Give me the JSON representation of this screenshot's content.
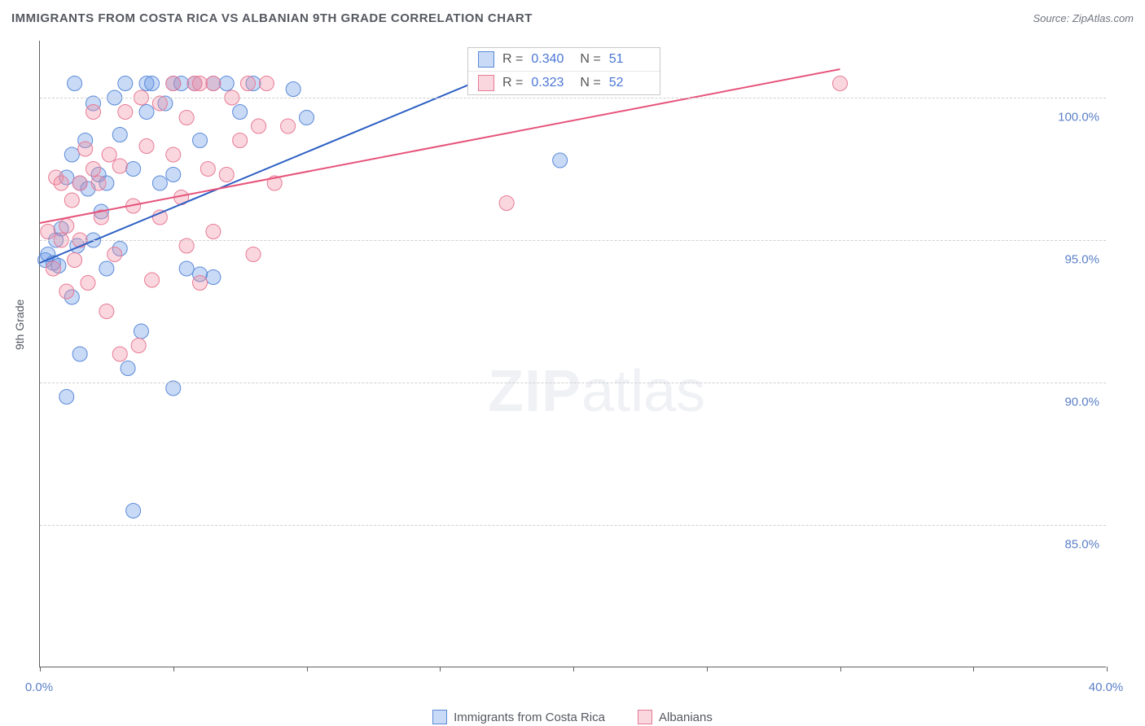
{
  "title": "IMMIGRANTS FROM COSTA RICA VS ALBANIAN 9TH GRADE CORRELATION CHART",
  "source_label": "Source: ZipAtlas.com",
  "ylabel": "9th Grade",
  "watermark": {
    "bold": "ZIP",
    "light": "atlas"
  },
  "colors": {
    "series_a_fill": "rgba(100,150,230,0.35)",
    "series_a_stroke": "#5a8ad8",
    "series_b_fill": "rgba(240,140,160,0.35)",
    "series_b_stroke": "#e77a95",
    "line_a": "#2d5fc4",
    "line_b": "#e6537a",
    "tick_text": "#5a7fc7",
    "grid": "#d0d0d0"
  },
  "chart": {
    "type": "scatter",
    "xlim": [
      0,
      40
    ],
    "ylim": [
      80,
      102
    ],
    "xticks": [
      0,
      5,
      10,
      15,
      20,
      25,
      30,
      35,
      40
    ],
    "xtick_labels": {
      "0": "0.0%",
      "40": "40.0%"
    },
    "yticks": [
      85,
      90,
      95,
      100
    ],
    "ytick_labels": {
      "85": "85.0%",
      "90": "90.0%",
      "95": "95.0%",
      "100": "100.0%"
    },
    "marker_radius": 9,
    "line_width": 2,
    "series": [
      {
        "key": "a",
        "label": "Immigrants from Costa Rica",
        "R": "0.340",
        "N": "51",
        "trend": {
          "x1": 0,
          "y1": 94.2,
          "x2": 18,
          "y2": 101.2
        },
        "points": [
          [
            0.2,
            94.3
          ],
          [
            0.3,
            94.5
          ],
          [
            0.5,
            94.2
          ],
          [
            0.6,
            95.0
          ],
          [
            0.7,
            94.1
          ],
          [
            0.8,
            95.4
          ],
          [
            1.0,
            97.2
          ],
          [
            1.0,
            89.5
          ],
          [
            1.2,
            93.0
          ],
          [
            1.2,
            98.0
          ],
          [
            1.3,
            100.5
          ],
          [
            1.4,
            94.8
          ],
          [
            1.5,
            97.0
          ],
          [
            1.5,
            91.0
          ],
          [
            1.7,
            98.5
          ],
          [
            1.8,
            96.8
          ],
          [
            2.0,
            99.8
          ],
          [
            2.0,
            95.0
          ],
          [
            2.2,
            97.3
          ],
          [
            2.3,
            96.0
          ],
          [
            2.5,
            97.0
          ],
          [
            2.5,
            94.0
          ],
          [
            2.8,
            100.0
          ],
          [
            3.0,
            98.7
          ],
          [
            3.0,
            94.7
          ],
          [
            3.2,
            100.5
          ],
          [
            3.3,
            90.5
          ],
          [
            3.5,
            97.5
          ],
          [
            3.5,
            85.5
          ],
          [
            3.8,
            91.8
          ],
          [
            4.0,
            99.5
          ],
          [
            4.0,
            100.5
          ],
          [
            4.2,
            100.5
          ],
          [
            4.5,
            97.0
          ],
          [
            4.7,
            99.8
          ],
          [
            5.0,
            100.5
          ],
          [
            5.0,
            97.3
          ],
          [
            5.0,
            89.8
          ],
          [
            5.3,
            100.5
          ],
          [
            5.5,
            94.0
          ],
          [
            5.8,
            100.5
          ],
          [
            6.0,
            98.5
          ],
          [
            6.0,
            93.8
          ],
          [
            6.5,
            100.5
          ],
          [
            6.5,
            93.7
          ],
          [
            7.0,
            100.5
          ],
          [
            7.5,
            99.5
          ],
          [
            8.0,
            100.5
          ],
          [
            9.5,
            100.3
          ],
          [
            10.0,
            99.3
          ],
          [
            19.5,
            97.8
          ]
        ]
      },
      {
        "key": "b",
        "label": "Albanians",
        "R": "0.323",
        "N": "52",
        "trend": {
          "x1": 0,
          "y1": 95.6,
          "x2": 30,
          "y2": 101
        },
        "points": [
          [
            0.3,
            95.3
          ],
          [
            0.5,
            94.0
          ],
          [
            0.6,
            97.2
          ],
          [
            0.8,
            95.0
          ],
          [
            0.8,
            97.0
          ],
          [
            1.0,
            95.5
          ],
          [
            1.0,
            93.2
          ],
          [
            1.2,
            96.4
          ],
          [
            1.3,
            94.3
          ],
          [
            1.5,
            97.0
          ],
          [
            1.5,
            95.0
          ],
          [
            1.7,
            98.2
          ],
          [
            1.8,
            93.5
          ],
          [
            2.0,
            97.5
          ],
          [
            2.0,
            99.5
          ],
          [
            2.2,
            97.0
          ],
          [
            2.3,
            95.8
          ],
          [
            2.5,
            92.5
          ],
          [
            2.6,
            98.0
          ],
          [
            2.8,
            94.5
          ],
          [
            3.0,
            91.0
          ],
          [
            3.0,
            97.6
          ],
          [
            3.2,
            99.5
          ],
          [
            3.5,
            96.2
          ],
          [
            3.7,
            91.3
          ],
          [
            3.8,
            100.0
          ],
          [
            4.0,
            98.3
          ],
          [
            4.2,
            93.6
          ],
          [
            4.5,
            99.8
          ],
          [
            4.5,
            95.8
          ],
          [
            5.0,
            100.5
          ],
          [
            5.0,
            98.0
          ],
          [
            5.3,
            96.5
          ],
          [
            5.5,
            99.3
          ],
          [
            5.5,
            94.8
          ],
          [
            5.8,
            100.5
          ],
          [
            6.0,
            100.5
          ],
          [
            6.0,
            93.5
          ],
          [
            6.3,
            97.5
          ],
          [
            6.5,
            100.5
          ],
          [
            6.5,
            95.3
          ],
          [
            7.0,
            97.3
          ],
          [
            7.2,
            100.0
          ],
          [
            7.5,
            98.5
          ],
          [
            7.8,
            100.5
          ],
          [
            8.0,
            94.5
          ],
          [
            8.2,
            99.0
          ],
          [
            8.5,
            100.5
          ],
          [
            8.8,
            97.0
          ],
          [
            9.3,
            99.0
          ],
          [
            17.5,
            96.3
          ],
          [
            30.0,
            100.5
          ]
        ]
      }
    ]
  },
  "legend_box": {
    "rows": [
      {
        "swatch": "a",
        "r_label": "R =",
        "r_val": "0.340",
        "n_label": "N =",
        "n_val": "51"
      },
      {
        "swatch": "b",
        "r_label": "R =",
        "r_val": "0.323",
        "n_label": "N =",
        "n_val": "52"
      }
    ]
  },
  "bottom_legend": [
    {
      "swatch": "a",
      "label": "Immigrants from Costa Rica"
    },
    {
      "swatch": "b",
      "label": "Albanians"
    }
  ]
}
